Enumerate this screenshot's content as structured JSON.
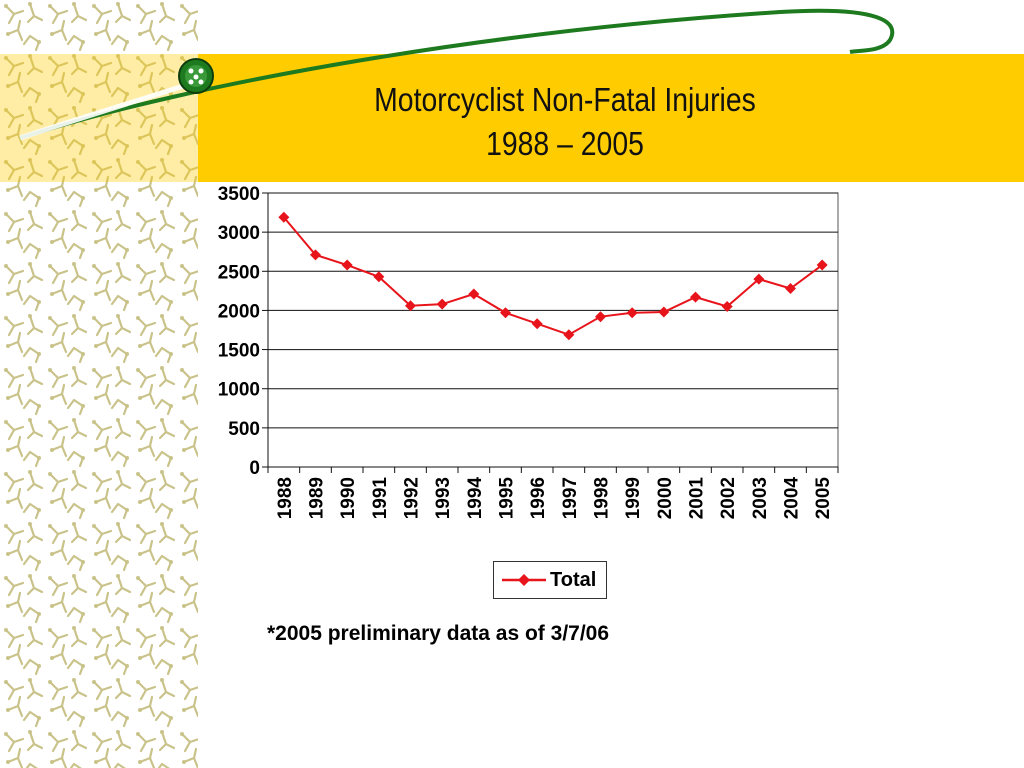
{
  "slide": {
    "title_line1": "Motorcyclist Non-Fatal Injuries",
    "title_line2": "1988 – 2005",
    "footnote": "*2005 preliminary data as of 3/7/06"
  },
  "colors": {
    "band": "#FFCC00",
    "swoosh": "#1E7A1E",
    "series": "#E8141B",
    "pattern": "#C9C38A"
  },
  "chart_data": {
    "type": "line",
    "title": "",
    "xlabel": "",
    "ylabel": "",
    "categories": [
      "1988",
      "1989",
      "1990",
      "1991",
      "1992",
      "1993",
      "1994",
      "1995",
      "1996",
      "1997",
      "1998",
      "1999",
      "2000",
      "2001",
      "2002",
      "2003",
      "2004",
      "2005"
    ],
    "series": [
      {
        "name": "Total",
        "values": [
          3190,
          2710,
          2580,
          2430,
          2060,
          2080,
          2210,
          1970,
          1830,
          1690,
          1920,
          1970,
          1980,
          2170,
          2050,
          2400,
          2280,
          2580
        ],
        "color": "#E8141B",
        "marker": "diamond"
      }
    ],
    "ylim": [
      0,
      3500
    ],
    "yticks": [
      0,
      500,
      1000,
      1500,
      2000,
      2500,
      3000,
      3500
    ],
    "grid": true,
    "legend": "bottom-center"
  }
}
